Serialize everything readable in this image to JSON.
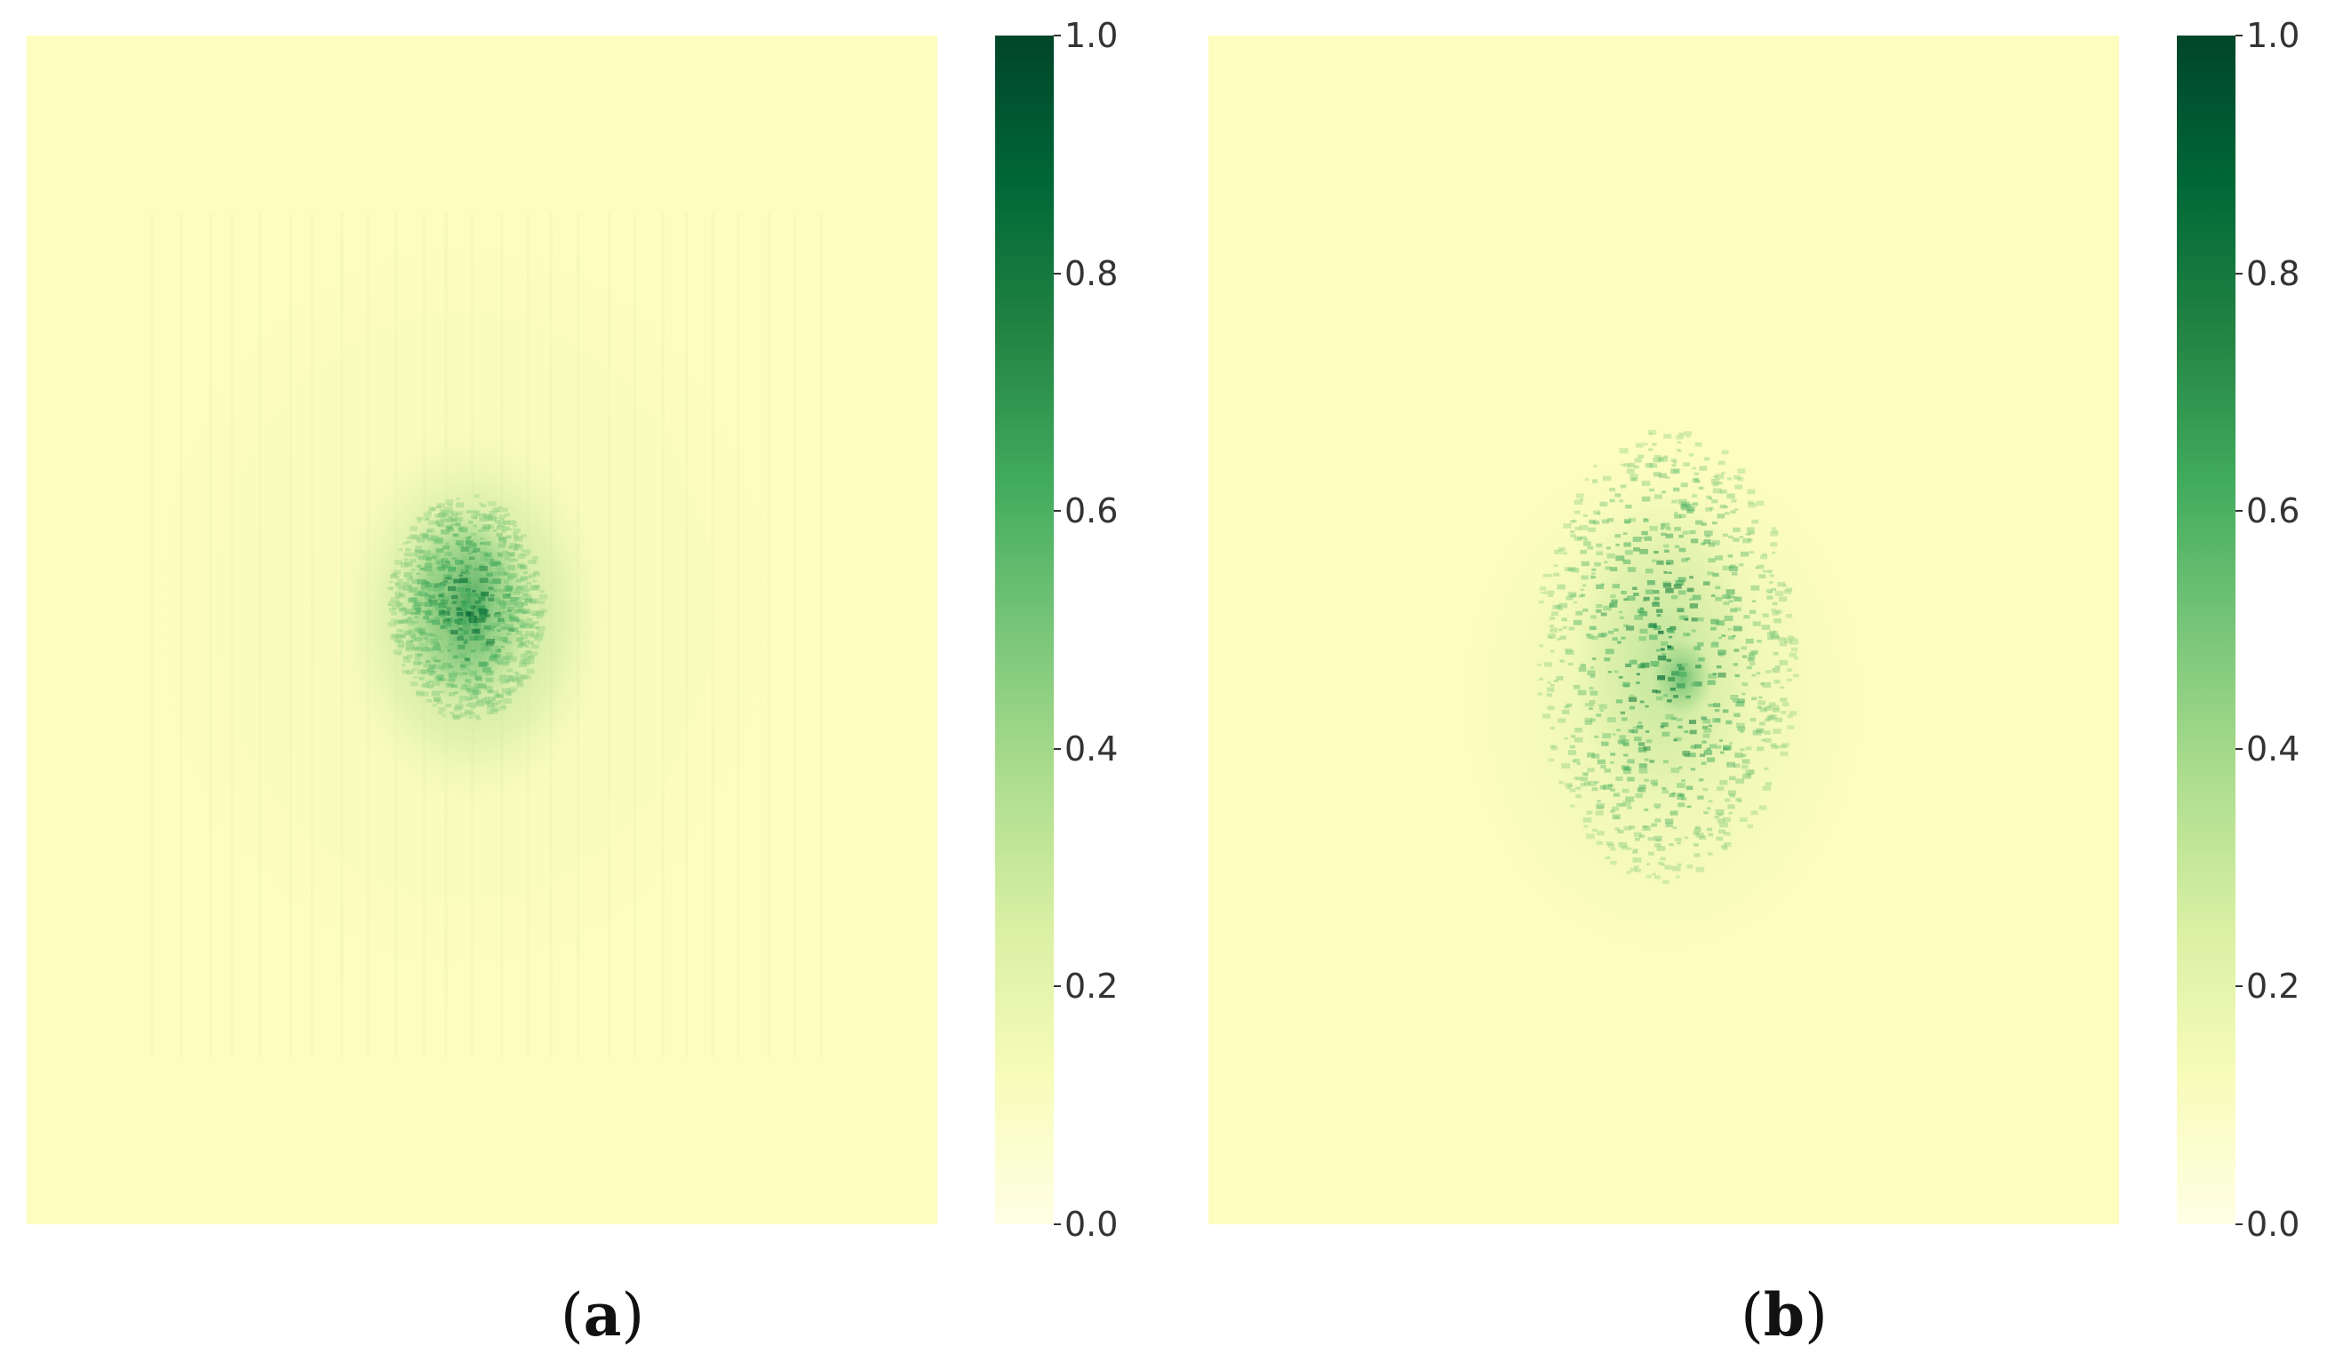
{
  "chart_data": [
    {
      "type": "heatmap",
      "panel_label_open": "(",
      "panel_label_letter": "a",
      "panel_label_close": ")",
      "colormap": "YlGn",
      "colorbar": {
        "range": [
          0.0,
          1.0
        ],
        "ticks": [
          "0.0",
          "0.2",
          "0.4",
          "0.6",
          "0.8",
          "1.0"
        ]
      },
      "hotspots": [
        {
          "cx": 0.48,
          "cy": 0.48,
          "rx": 0.42,
          "ry": 0.38,
          "peak": 0.12
        },
        {
          "cx": 0.49,
          "cy": 0.49,
          "rx": 0.16,
          "ry": 0.17,
          "peak": 0.35
        },
        {
          "cx": 0.48,
          "cy": 0.48,
          "rx": 0.085,
          "ry": 0.095,
          "peak": 0.55
        },
        {
          "cx": 0.45,
          "cy": 0.47,
          "rx": 0.035,
          "ry": 0.06,
          "peak": 0.28
        },
        {
          "cx": 0.53,
          "cy": 0.5,
          "rx": 0.03,
          "ry": 0.05,
          "peak": 0.2
        }
      ],
      "texture": "grid"
    },
    {
      "type": "heatmap",
      "panel_label_open": "(",
      "panel_label_letter": "b",
      "panel_label_close": ")",
      "colormap": "YlGn",
      "colorbar": {
        "range": [
          0.0,
          1.0
        ],
        "ticks": [
          "0.0",
          "0.2",
          "0.4",
          "0.6",
          "0.8",
          "1.0"
        ]
      },
      "hotspots": [
        {
          "cx": 0.5,
          "cy": 0.56,
          "rx": 0.25,
          "ry": 0.24,
          "peak": 0.2
        },
        {
          "cx": 0.5,
          "cy": 0.52,
          "rx": 0.12,
          "ry": 0.16,
          "peak": 0.3
        },
        {
          "cx": 0.52,
          "cy": 0.54,
          "rx": 0.04,
          "ry": 0.04,
          "peak": 0.45
        }
      ],
      "texture": "noise"
    }
  ]
}
